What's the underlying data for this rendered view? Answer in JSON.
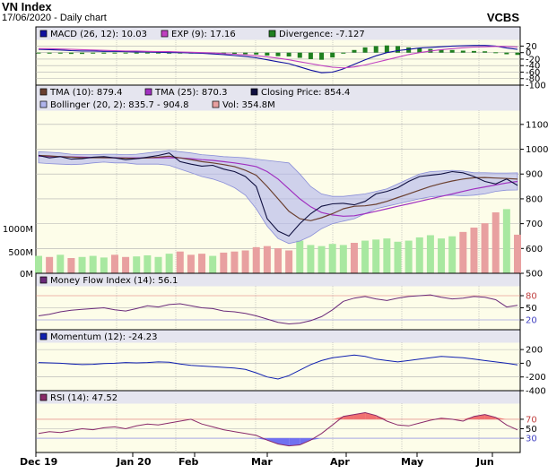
{
  "header": {
    "title": "VN Index",
    "subtitle": "17/06/2020 - Daily chart",
    "source": "VCBS"
  },
  "colors": {
    "plot_bg": "#fdfde9",
    "legend_bg": "#e5e5ef",
    "grid": "#b0b0b0",
    "macd": "#1010a0",
    "exp": "#c040c0",
    "divergence": "#208020",
    "tma10": "#6b4030",
    "tma25": "#a030c0",
    "close": "#101040",
    "bollinger": "#b0b4ec",
    "vol_up": "#a8e8a0",
    "vol_down": "#e8a0a0",
    "mfi": "#6a2a7a",
    "momentum": "#1020b0",
    "rsi": "#8a2a6a",
    "rsi_fill_top": "#f07070",
    "rsi_fill_bottom": "#7070f0",
    "guide_line": "#e07070",
    "guide_line_low": "#7070e0"
  },
  "chart_data": [
    {
      "type": "bar",
      "panel": "macd",
      "legend": [
        "MACD (26, 12): 10.03",
        "EXP (9): 17.16",
        "Divergence: -7.127"
      ],
      "y_ticks": [
        20,
        0,
        -20,
        -40,
        -60,
        -80,
        -100
      ],
      "ylim": [
        -100,
        35
      ],
      "macd": [
        10,
        9,
        8,
        6,
        5,
        5,
        4,
        4,
        3,
        2,
        2,
        1,
        0,
        0,
        -1,
        -2,
        -4,
        -6,
        -9,
        -12,
        -16,
        -22,
        -28,
        -34,
        -44,
        -54,
        -62,
        -60,
        -50,
        -36,
        -22,
        -10,
        0,
        6,
        10,
        14,
        16,
        18,
        20,
        21,
        22,
        22,
        20,
        14,
        10
      ],
      "exp": [
        12,
        12,
        11,
        10,
        9,
        8,
        7,
        6,
        5,
        5,
        4,
        3,
        3,
        2,
        1,
        0,
        -1,
        -3,
        -5,
        -7,
        -10,
        -13,
        -17,
        -22,
        -28,
        -34,
        -40,
        -45,
        -47,
        -44,
        -38,
        -30,
        -22,
        -14,
        -6,
        0,
        5,
        9,
        12,
        15,
        17,
        18,
        19,
        19,
        17
      ],
      "divergence": [
        -2,
        -3,
        -3,
        -4,
        -4,
        -3,
        -3,
        -2,
        -2,
        -3,
        -2,
        -2,
        -3,
        -2,
        -2,
        -2,
        -3,
        -3,
        -4,
        -5,
        -6,
        -9,
        -11,
        -12,
        -16,
        -20,
        -22,
        -15,
        -3,
        8,
        16,
        20,
        22,
        20,
        16,
        14,
        11,
        9,
        8,
        6,
        5,
        4,
        1,
        -5,
        -7
      ]
    },
    {
      "type": "line",
      "panel": "price",
      "legend": [
        "TMA (10): 879.4",
        "TMA (25): 870.3",
        "Closing Price: 854.4",
        "Bollinger (20, 2): 835.7 - 904.8",
        "Vol: 354.8M"
      ],
      "y_ticks": [
        1100,
        1000,
        900,
        800,
        700,
        600,
        500
      ],
      "vol_ticks": [
        "1000M",
        "500M",
        "0M"
      ],
      "ylim": [
        500,
        1150
      ],
      "vol_max": 1400,
      "close": [
        975,
        965,
        970,
        960,
        962,
        968,
        970,
        965,
        958,
        962,
        968,
        975,
        985,
        950,
        940,
        932,
        935,
        920,
        910,
        890,
        850,
        720,
        670,
        650,
        700,
        740,
        770,
        780,
        782,
        776,
        790,
        820,
        830,
        845,
        870,
        890,
        895,
        900,
        910,
        905,
        890,
        870,
        860,
        880,
        854.4
      ],
      "tma10": [
        975,
        973,
        970,
        968,
        966,
        966,
        966,
        965,
        964,
        963,
        965,
        968,
        972,
        965,
        958,
        950,
        945,
        938,
        930,
        915,
        895,
        850,
        800,
        750,
        720,
        712,
        724,
        740,
        760,
        770,
        772,
        778,
        790,
        805,
        820,
        835,
        850,
        862,
        872,
        880,
        885,
        886,
        884,
        882,
        879.4
      ],
      "tma25": [
        972,
        971,
        970,
        969,
        968,
        967,
        966,
        966,
        965,
        965,
        965,
        965,
        966,
        965,
        962,
        958,
        955,
        950,
        945,
        938,
        930,
        910,
        880,
        840,
        800,
        768,
        745,
        735,
        730,
        732,
        740,
        750,
        760,
        770,
        780,
        790,
        800,
        810,
        820,
        830,
        840,
        848,
        856,
        864,
        870.3
      ],
      "bb_upper": [
        990,
        988,
        985,
        980,
        978,
        978,
        980,
        980,
        978,
        980,
        985,
        990,
        995,
        990,
        985,
        978,
        975,
        970,
        968,
        965,
        960,
        955,
        950,
        945,
        900,
        850,
        820,
        810,
        810,
        815,
        820,
        830,
        840,
        860,
        880,
        900,
        910,
        912,
        915,
        912,
        905,
        905,
        904,
        904,
        904.8
      ],
      "bb_lower": [
        945,
        942,
        940,
        938,
        940,
        945,
        948,
        945,
        945,
        940,
        940,
        940,
        935,
        920,
        905,
        890,
        880,
        865,
        845,
        815,
        760,
        690,
        640,
        620,
        630,
        650,
        680,
        700,
        710,
        720,
        740,
        760,
        770,
        780,
        790,
        800,
        808,
        812,
        815,
        812,
        815,
        820,
        830,
        835,
        835.7
      ],
      "volume": [
        160,
        150,
        170,
        140,
        150,
        160,
        145,
        170,
        150,
        155,
        165,
        150,
        180,
        200,
        170,
        180,
        160,
        190,
        200,
        210,
        240,
        250,
        230,
        210,
        300,
        260,
        250,
        270,
        260,
        280,
        300,
        310,
        320,
        290,
        300,
        330,
        350,
        320,
        340,
        380,
        420,
        460,
        560,
        590,
        354.8
      ]
    },
    {
      "type": "line",
      "panel": "mfi",
      "legend": [
        "Money Flow Index (14): 56.1"
      ],
      "y_ticks": [
        80,
        50,
        20
      ],
      "ylim": [
        0,
        100
      ],
      "values": [
        30,
        34,
        40,
        44,
        46,
        48,
        50,
        45,
        42,
        48,
        55,
        52,
        58,
        60,
        55,
        50,
        48,
        42,
        40,
        36,
        30,
        22,
        14,
        10,
        12,
        18,
        28,
        45,
        66,
        74,
        78,
        72,
        68,
        74,
        78,
        80,
        82,
        76,
        72,
        74,
        78,
        76,
        70,
        52,
        56.1
      ]
    },
    {
      "type": "line",
      "panel": "momentum",
      "legend": [
        "Momentum (12): -24.23"
      ],
      "y_ticks": [
        200,
        0,
        -200,
        -400
      ],
      "ylim": [
        -400,
        280
      ],
      "values": [
        10,
        5,
        0,
        -10,
        -20,
        -15,
        -5,
        0,
        10,
        5,
        10,
        20,
        15,
        -10,
        -30,
        -40,
        -50,
        -60,
        -70,
        -90,
        -140,
        -200,
        -230,
        -180,
        -100,
        -20,
        40,
        80,
        100,
        120,
        100,
        60,
        40,
        20,
        40,
        60,
        80,
        100,
        90,
        80,
        60,
        40,
        20,
        0,
        -24.23
      ]
    },
    {
      "type": "line",
      "panel": "rsi",
      "legend": [
        "RSI (14): 47.52"
      ],
      "y_ticks": [
        70,
        50,
        30
      ],
      "ylim": [
        0,
        100
      ],
      "values": [
        40,
        44,
        42,
        46,
        50,
        48,
        52,
        54,
        50,
        56,
        60,
        58,
        62,
        66,
        70,
        60,
        54,
        48,
        44,
        40,
        36,
        26,
        18,
        14,
        16,
        26,
        40,
        58,
        76,
        80,
        84,
        78,
        66,
        58,
        56,
        62,
        68,
        72,
        70,
        66,
        76,
        80,
        74,
        58,
        47.52
      ]
    }
  ],
  "x_axis": {
    "labels": [
      "Dec 19",
      "Jan 20",
      "Feb",
      "Mar",
      "Apr",
      "May",
      "Jun"
    ]
  }
}
